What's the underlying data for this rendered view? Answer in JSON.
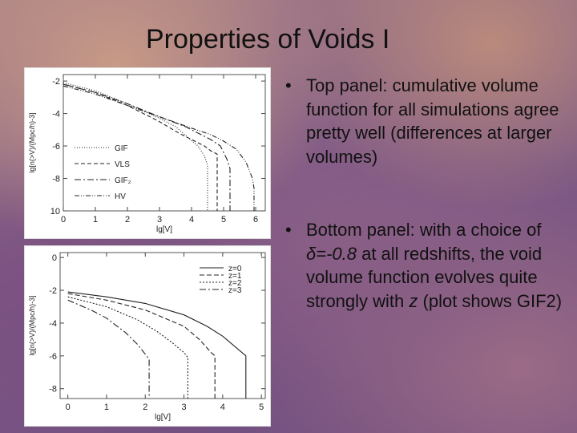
{
  "slide": {
    "title": "Properties of Voids I"
  },
  "bullets": [
    {
      "text": "Top panel: cumulative volume function for all simulations agree pretty well (differences at larger volumes)"
    },
    {
      "text_parts": [
        {
          "text": "Bottom panel: with a choice of ",
          "style": "normal"
        },
        {
          "text": "δ=-0.8",
          "style": "italic"
        },
        {
          "text": " at all redshifts, the void volume function evolves quite strongly with ",
          "style": "normal"
        },
        {
          "text": "z",
          "style": "italic"
        },
        {
          "text": " (plot shows GIF2)",
          "style": "normal"
        }
      ]
    }
  ],
  "bullet_glyph": "•",
  "chart_data": [
    {
      "type": "line",
      "xlabel": "lg[V]",
      "ylabel": "lg[n(>V)/(Mpc/h)-3]",
      "xticks": [
        "0",
        "1",
        "2",
        "3",
        "4",
        "5",
        "6"
      ],
      "yticks": [
        "-2",
        "-4",
        "-6",
        "-8",
        "10"
      ],
      "xlim": [
        0,
        6.3
      ],
      "ylim": [
        -10,
        -1.6
      ],
      "legend_position": "bottom-left",
      "series": [
        {
          "name": "GIF",
          "dash": "1,2",
          "x": [
            0.0,
            1.0,
            2.0,
            3.0,
            3.5,
            3.9,
            4.2,
            4.4,
            4.5,
            4.5
          ],
          "y": [
            -2.1,
            -2.6,
            -3.4,
            -4.3,
            -4.8,
            -5.5,
            -6.0,
            -6.6,
            -7.2,
            -10
          ]
        },
        {
          "name": "VLS",
          "dash": "5,3",
          "x": [
            0.0,
            1.0,
            2.0,
            3.0,
            3.6,
            4.0,
            4.4,
            4.6,
            4.8,
            4.8
          ],
          "y": [
            -2.2,
            -2.7,
            -3.5,
            -4.5,
            -5.2,
            -5.6,
            -6.0,
            -6.3,
            -6.5,
            -10
          ]
        },
        {
          "name": "GIF₂",
          "dash": "8,3,2,3",
          "x": [
            0.0,
            1.0,
            2.0,
            3.0,
            3.8,
            4.2,
            4.6,
            4.9,
            5.1,
            5.2,
            5.2
          ],
          "y": [
            -2.2,
            -2.7,
            -3.4,
            -4.2,
            -4.8,
            -5.2,
            -5.6,
            -6.0,
            -6.8,
            -7.4,
            -10
          ]
        },
        {
          "name": "HV",
          "dash": "6,2,1,2,1,2",
          "x": [
            0.0,
            1.0,
            2.0,
            3.0,
            4.0,
            4.6,
            5.0,
            5.4,
            5.7,
            5.9,
            5.95,
            5.95
          ],
          "y": [
            -2.3,
            -2.8,
            -3.5,
            -4.2,
            -4.9,
            -5.3,
            -5.7,
            -6.2,
            -7.0,
            -8.0,
            -8.6,
            -10
          ]
        }
      ]
    },
    {
      "type": "line",
      "xlabel": "lg[V]",
      "ylabel": "lg[n(>V)/(Mpc/h)-3]",
      "xticks": [
        "0",
        "1",
        "2",
        "3",
        "4",
        "5"
      ],
      "yticks": [
        "0",
        "-2",
        "-4",
        "-6",
        "-8"
      ],
      "xlim": [
        -0.2,
        5.1
      ],
      "ylim": [
        -8.6,
        0.3
      ],
      "legend_position": "top-right",
      "series": [
        {
          "name": "z=0",
          "dash": "none",
          "x": [
            0.0,
            1.0,
            2.0,
            3.0,
            3.6,
            4.0,
            4.3,
            4.5,
            4.6,
            4.6
          ],
          "y": [
            -2.1,
            -2.4,
            -2.8,
            -3.5,
            -4.2,
            -4.8,
            -5.4,
            -5.8,
            -6.0,
            -8.6
          ]
        },
        {
          "name": "z=1",
          "dash": "6,3",
          "x": [
            0.0,
            1.0,
            2.0,
            3.0,
            3.4,
            3.7,
            3.8,
            3.8
          ],
          "y": [
            -2.2,
            -2.6,
            -3.2,
            -4.2,
            -5.0,
            -5.8,
            -6.0,
            -8.6
          ]
        },
        {
          "name": "z=2",
          "dash": "2,2",
          "x": [
            0.0,
            1.0,
            1.8,
            2.3,
            2.7,
            3.0,
            3.1,
            3.1
          ],
          "y": [
            -2.4,
            -3.0,
            -3.8,
            -4.5,
            -5.2,
            -5.8,
            -6.1,
            -8.6
          ]
        },
        {
          "name": "z=3",
          "dash": "8,3,2,3",
          "x": [
            0.0,
            0.6,
            1.0,
            1.5,
            1.8,
            2.0,
            2.1,
            2.1
          ],
          "y": [
            -2.6,
            -3.2,
            -3.7,
            -4.6,
            -5.3,
            -5.9,
            -6.2,
            -8.6
          ]
        }
      ]
    }
  ]
}
